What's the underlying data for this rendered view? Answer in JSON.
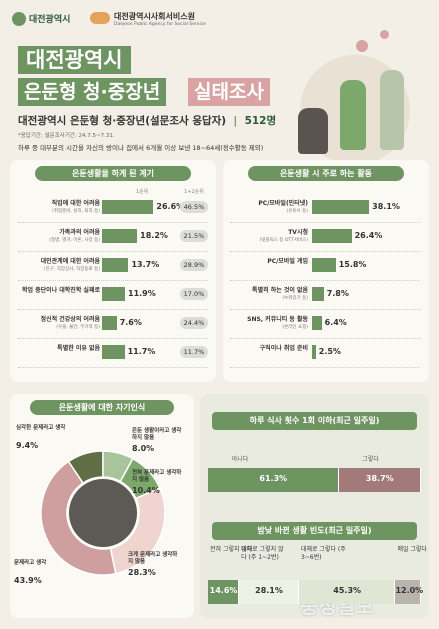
{
  "header": {
    "logo1": "대전광역시",
    "logo2": "대전광역시사회서비스원",
    "logo2_en": "Daejeon Public Agency for Social Service",
    "title1": "대전광역시",
    "title2": "은둔형 청·중장년",
    "title3": "실태조사",
    "subtitle": "대전광역시 은둔형 청·중장년(설문조사 응답자)",
    "count": "512명",
    "period": "*응답기간: 설문조사기간: 24.7.5~7.31.",
    "note": "하루 중 대부분의 시간을 자신의 방이나 집에서 6개월 이상 보낸 18~64세(정수활동 제외)"
  },
  "chart_data": [
    {
      "type": "bar",
      "title": "은둔생활을 하게 된 계기",
      "categories": [
        "직업에 대한 어려움",
        "가족과의 어려움",
        "대인관계에 대한 어려움",
        "학업 중단이나 대학진학 실패로",
        "정신적 건강상의 어려움",
        "특별한 이유 없음"
      ],
      "sublabels": [
        "(취업준비, 실직, 퇴직 등)",
        "(질병, 별거, 이혼, 사망 등)",
        "(친구, 직장상사, 직장동료 등)",
        null,
        "(우울, 불안, 무기력 등)",
        null
      ],
      "xlim": [
        0,
        30
      ],
      "series": [
        {
          "name": "1순위",
          "color": "#6e9461",
          "values": [
            26.6,
            18.2,
            13.7,
            11.9,
            7.6,
            11.7
          ],
          "value_labels": [
            "26.6%",
            "18.2%",
            "13.7%",
            "11.9%",
            "7.6%",
            "11.7%"
          ]
        },
        {
          "name": "1+2순위",
          "color": "#dcdcd8",
          "values": [
            46.5,
            21.5,
            28.9,
            17.0,
            24.4,
            11.7
          ],
          "value_labels": [
            "46.5%",
            "21.5%",
            "28.9%",
            "17.0%",
            "24.4%",
            "11.7%"
          ]
        }
      ]
    },
    {
      "type": "bar",
      "title": "은둔생활 시 주로 하는 활동",
      "categories": [
        "PC/모바일(인터넷)",
        "TV시청",
        "PC/모바일 게임",
        "특별히 하는 것이 없음",
        "SNS, 커뮤니티 등 활동",
        "구직이나 취업 준비"
      ],
      "sublabels": [
        "(유튜브 등)",
        "(넷플릭스 등 OTT서비스)",
        null,
        "(누워있기 등)",
        "(온라인 쇼핑)",
        null
      ],
      "xlim": [
        0,
        40
      ],
      "color": "#6e9461",
      "values": [
        38.1,
        26.4,
        15.8,
        7.8,
        6.4,
        2.5
      ],
      "value_labels": [
        "38.1%",
        "26.4%",
        "15.8%",
        "7.8%",
        "6.4%",
        "2.5%"
      ]
    },
    {
      "type": "pie",
      "donut": true,
      "title": "은둔생활에 대한 자기인식",
      "categories": [
        "심각한 문제라고 생각",
        "은둔 생활이라고 생각하지 않음",
        "전혀 문제라고 생각하지 않음",
        "크게 문제라고 생각하지 않음",
        "문제라고 생각"
      ],
      "values": [
        9.4,
        8.0,
        10.4,
        28.3,
        43.9
      ],
      "value_labels": [
        "9.4%",
        "8.0%",
        "10.4%",
        "28.3%",
        "43.9%"
      ],
      "colors": [
        "#5f6e45",
        "#a9c49a",
        "#7da86c",
        "#efd4cf",
        "#cf9f9f"
      ]
    },
    {
      "type": "stacked_bar",
      "title": "하루 식사 횟수 1회 이하(최근 일주일)",
      "xlim": [
        0,
        100
      ],
      "series": [
        {
          "name": "아니다",
          "color": "#6e9461",
          "values": [
            61.3
          ],
          "value_labels": [
            "61.3%"
          ]
        },
        {
          "name": "그렇다",
          "color": "#a27a7a",
          "values": [
            38.7
          ],
          "value_labels": [
            "38.7%"
          ]
        }
      ]
    },
    {
      "type": "stacked_bar",
      "title": "밤낮 바뀐 생활 빈도(최근 일주일)",
      "xlim": [
        0,
        100
      ],
      "series": [
        {
          "name": "전혀 그렇지 않다",
          "color": "#6e9461",
          "values": [
            14.6
          ],
          "value_labels": [
            "14.6%"
          ]
        },
        {
          "name": "대체로 그렇지 않다 (주 1~2번)",
          "color": "#eef1e6",
          "values": [
            28.1
          ],
          "value_labels": [
            "28.1%"
          ]
        },
        {
          "name": "대체로 그렇다 (주 3~6번)",
          "color": "#dfe6d3",
          "values": [
            45.3
          ],
          "value_labels": [
            "45.3%"
          ]
        },
        {
          "name": "매일 그렇다",
          "color": "#b9b3ad",
          "values": [
            12.0
          ],
          "value_labels": [
            "12.0%"
          ]
        }
      ]
    }
  ],
  "watermark": "충청일보"
}
